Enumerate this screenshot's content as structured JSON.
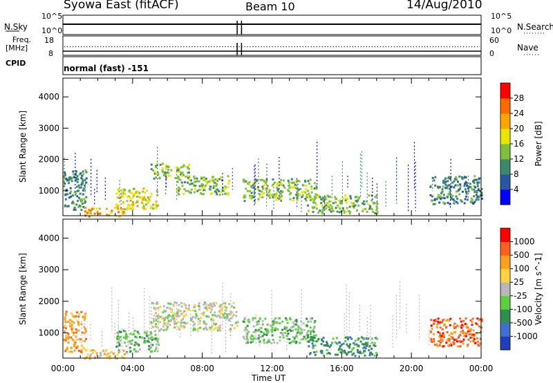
{
  "header": {
    "station": "Syowa East (fitACF)",
    "beam": "Beam 10",
    "date": "14/Aug/2010"
  },
  "info_panels": {
    "nsky_label": "N.Sky",
    "nsearch_label": "N.Search",
    "nsky_ticks": [
      "10^5",
      "10^0"
    ],
    "nsearch_ticks": [
      "10^5",
      "10^0"
    ],
    "freq_label_line1": "Freq.",
    "freq_label_line2": "[MHz]",
    "freq_ticks": [
      "18",
      "8"
    ],
    "nave_label": "Nave",
    "nave_ticks": [
      "60",
      "0"
    ],
    "cpid_label": "CPID",
    "cpid_value": "normal (fast) -151"
  },
  "chart_data": [
    {
      "type": "heatmap",
      "panel": "power",
      "ylabel": "Slant Range [km]",
      "xlabel": "Time UT",
      "x_ticks": [
        "00:00",
        "04:00",
        "08:00",
        "12:00",
        "16:00",
        "20:00",
        "00:00"
      ],
      "y_ticks": [
        1000,
        2000,
        3000,
        4000
      ],
      "ylim": [
        200,
        4600
      ],
      "xlim_hours": [
        0,
        24
      ],
      "colorbar": {
        "label": "Power [dB]",
        "ticks": [
          4,
          8,
          12,
          16,
          20,
          24,
          28
        ],
        "colors": [
          "#0000ff",
          "#2956a3",
          "#3a8a6a",
          "#7fbf3f",
          "#e6e600",
          "#ffa500",
          "#ff6a00",
          "#ff0000"
        ]
      },
      "echo_regions": [
        {
          "t0": 0.0,
          "t1": 1.3,
          "r0": 400,
          "r1": 1700,
          "level": 2
        },
        {
          "t0": 1.2,
          "t1": 3.5,
          "r0": 200,
          "r1": 500,
          "level": 5
        },
        {
          "t0": 3.0,
          "t1": 5.5,
          "r0": 400,
          "r1": 1100,
          "level": 4
        },
        {
          "t0": 5.0,
          "t1": 7.2,
          "r0": 1400,
          "r1": 1900,
          "level": 3
        },
        {
          "t0": 6.5,
          "t1": 9.5,
          "r0": 900,
          "r1": 1500,
          "level": 3
        },
        {
          "t0": 10.3,
          "t1": 14.5,
          "r0": 700,
          "r1": 1400,
          "level": 3
        },
        {
          "t0": 14.0,
          "t1": 18.0,
          "r0": 300,
          "r1": 900,
          "level": 3
        },
        {
          "t0": 21.0,
          "t1": 24.0,
          "r0": 600,
          "r1": 1500,
          "level": 2
        }
      ]
    },
    {
      "type": "heatmap",
      "panel": "velocity",
      "ylabel": "Slant Range [km]",
      "xlabel": "Time UT",
      "x_ticks": [
        "00:00",
        "04:00",
        "08:00",
        "12:00",
        "16:00",
        "20:00",
        "00:00"
      ],
      "y_ticks": [
        1000,
        2000,
        3000,
        4000
      ],
      "ylim": [
        200,
        4600
      ],
      "xlim_hours": [
        0,
        24
      ],
      "colorbar": {
        "label": "Velocity [m s^-1]",
        "ticks": [
          1000,
          500,
          100,
          25,
          -25,
          -100,
          -500,
          -1000
        ],
        "colors": [
          "#1f3fbf",
          "#3f6fd0",
          "#2f8f4f",
          "#5fcf3f",
          "#b8b8b8",
          "#ffd23f",
          "#ff9f1f",
          "#ff5f1f",
          "#ff0000"
        ]
      },
      "echo_regions": [
        {
          "t0": 0.0,
          "t1": 1.3,
          "r0": 400,
          "r1": 1700,
          "level": 6
        },
        {
          "t0": 1.2,
          "t1": 3.5,
          "r0": 200,
          "r1": 500,
          "level": 5
        },
        {
          "t0": 3.0,
          "t1": 5.5,
          "r0": 400,
          "r1": 1100,
          "level": 3
        },
        {
          "t0": 5.0,
          "t1": 10.0,
          "r0": 1100,
          "r1": 2000,
          "level": 4
        },
        {
          "t0": 10.3,
          "t1": 14.5,
          "r0": 700,
          "r1": 1500,
          "level": 3
        },
        {
          "t0": 14.0,
          "t1": 18.0,
          "r0": 300,
          "r1": 900,
          "level": 2
        },
        {
          "t0": 21.0,
          "t1": 24.0,
          "r0": 600,
          "r1": 1500,
          "level": 7
        }
      ]
    }
  ]
}
